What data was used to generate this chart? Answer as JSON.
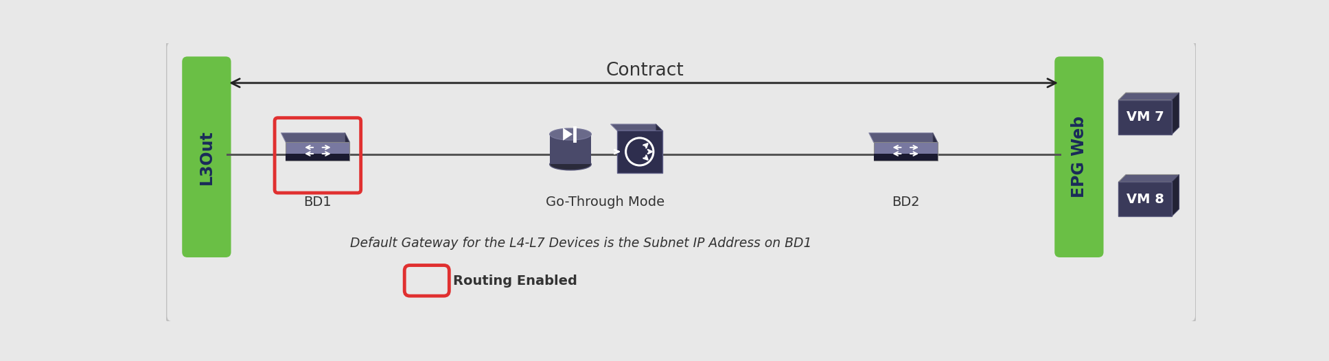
{
  "bg_color": "#e8e8e8",
  "green_color": "#6abf45",
  "green_edge": "#5aaf35",
  "label_color": "#1a2a5a",
  "dark_text": "#333333",
  "arrow_color": "#222222",
  "line_color": "#555555",
  "red_color": "#e03030",
  "device_top": "#7878a0",
  "device_mid": "#3a3a5a",
  "device_bot": "#1a1a30",
  "vm_front": "#3a3a5a",
  "vm_top_face": "#5a5a7a",
  "vm_right_face": "#2a2a42",
  "fw_body": "#2e2e4e",
  "cyl_top": "#6a6a8a",
  "cyl_mid": "#4a4a6a",
  "cyl_bot": "#2a2a3a",
  "title": "Contract",
  "l3out_label": "L3Out",
  "epg_label": "EPG Web",
  "bd1_label": "BD1",
  "bd2_label": "BD2",
  "go_through_label": "Go-Through Mode",
  "vm7_label": "VM 7",
  "vm8_label": "VM 8",
  "subtitle": "Default Gateway for the L4-L7 Devices is the Subnet IP Address on BD1",
  "legend_text": "Routing Enabled",
  "fig_w": 19.36,
  "fig_h": 5.26,
  "dpi": 100
}
